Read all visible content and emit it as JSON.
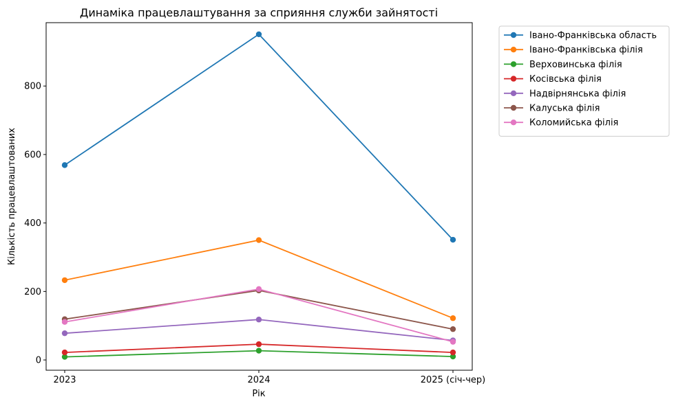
{
  "chart_data": {
    "type": "line",
    "title": "Динаміка працевлаштування за сприяння служби зайнятості",
    "xlabel": "Рік",
    "ylabel": "Кількість працевлаштованих",
    "categories": [
      "2023",
      "2024",
      "2025 (січ-чер)"
    ],
    "ylim": [
      -30,
      985
    ],
    "yticks": [
      0,
      200,
      400,
      600,
      800
    ],
    "grid": false,
    "legend_position": "outside-top-right",
    "series": [
      {
        "name": "Івано-Франківська область",
        "color": "#1f77b4",
        "values": [
          569,
          951,
          351
        ]
      },
      {
        "name": "Івано-Франківська філія",
        "color": "#ff7f0e",
        "values": [
          233,
          350,
          122
        ]
      },
      {
        "name": "Верховинська філія",
        "color": "#2ca02c",
        "values": [
          9,
          27,
          10
        ]
      },
      {
        "name": "Косівська філія",
        "color": "#d62728",
        "values": [
          22,
          46,
          22
        ]
      },
      {
        "name": "Надвірнянська філія",
        "color": "#9467bd",
        "values": [
          78,
          118,
          57
        ]
      },
      {
        "name": "Калуська філія",
        "color": "#8c564b",
        "values": [
          119,
          203,
          90
        ]
      },
      {
        "name": "Коломийська філія",
        "color": "#e377c2",
        "values": [
          111,
          207,
          53
        ]
      }
    ]
  }
}
